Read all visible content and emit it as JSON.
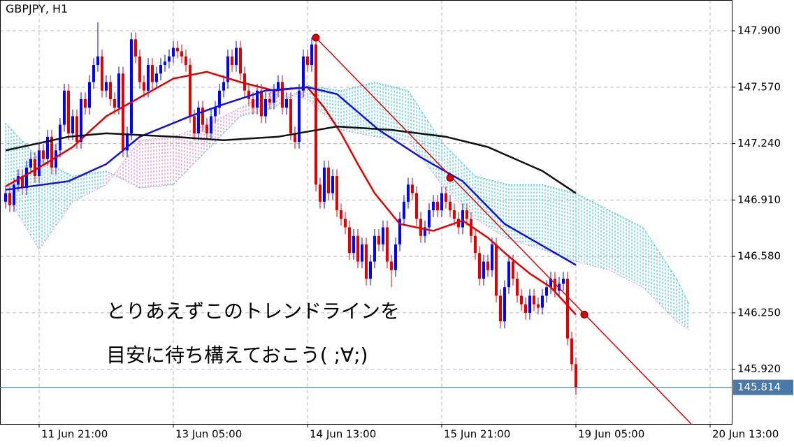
{
  "chart_data": {
    "type": "candlestick",
    "title": "GBPJPY, H1",
    "xlim": [
      -1.33,
      173.17
    ],
    "ylim": [
      145.6,
      148.08
    ],
    "xticks": [
      {
        "value": 8,
        "label": "11 Jun 21:00"
      },
      {
        "value": 40,
        "label": "13 Jun 05:00"
      },
      {
        "value": 72,
        "label": "14 Jun 13:00"
      },
      {
        "value": 104,
        "label": "15 Jun 21:00"
      },
      {
        "value": 136,
        "label": "19 Jun 05:00"
      },
      {
        "value": 168,
        "label": "20 Jun 13:00"
      }
    ],
    "yticks": [
      {
        "value": 147.9,
        "label": "147.900"
      },
      {
        "value": 147.57,
        "label": "147.570"
      },
      {
        "value": 147.24,
        "label": "147.240"
      },
      {
        "value": 146.91,
        "label": "146.910"
      },
      {
        "value": 146.58,
        "label": "146.580"
      },
      {
        "value": 146.25,
        "label": "146.250"
      },
      {
        "value": 145.92,
        "label": "145.920"
      }
    ],
    "grid": true,
    "up_color": "#0000ff",
    "down_color": "#e00000",
    "candles": [
      [
        146.9,
        146.99,
        146.86,
        146.95
      ],
      [
        146.95,
        146.99,
        146.84,
        146.88
      ],
      [
        146.88,
        147.04,
        146.84,
        147.0
      ],
      [
        147.0,
        147.09,
        146.96,
        147.05
      ],
      [
        147.05,
        147.09,
        146.94,
        146.98
      ],
      [
        146.98,
        147.14,
        146.94,
        147.1
      ],
      [
        147.1,
        147.19,
        147.06,
        147.15
      ],
      [
        147.15,
        147.19,
        147.01,
        147.05
      ],
      [
        147.05,
        147.24,
        147.01,
        147.2
      ],
      [
        147.2,
        147.24,
        147.11,
        147.15
      ],
      [
        147.15,
        147.32,
        147.11,
        147.28
      ],
      [
        147.28,
        147.32,
        147.06,
        147.1
      ],
      [
        147.1,
        147.24,
        147.06,
        147.2
      ],
      [
        147.2,
        147.39,
        147.16,
        147.35
      ],
      [
        147.35,
        147.59,
        147.31,
        147.55
      ],
      [
        147.55,
        147.59,
        147.26,
        147.3
      ],
      [
        147.3,
        147.44,
        147.26,
        147.4
      ],
      [
        147.4,
        147.44,
        147.21,
        147.25
      ],
      [
        147.25,
        147.54,
        147.21,
        147.5
      ],
      [
        147.5,
        147.54,
        147.41,
        147.45
      ],
      [
        147.45,
        147.64,
        147.41,
        147.6
      ],
      [
        147.6,
        147.74,
        147.56,
        147.7
      ],
      [
        147.7,
        147.95,
        147.66,
        147.75
      ],
      [
        147.75,
        147.79,
        147.51,
        147.55
      ],
      [
        147.55,
        147.64,
        147.51,
        147.6
      ],
      [
        147.6,
        147.64,
        147.46,
        147.5
      ],
      [
        147.5,
        147.54,
        147.41,
        147.45
      ],
      [
        147.45,
        147.69,
        147.41,
        147.65
      ],
      [
        147.65,
        147.69,
        147.16,
        147.2
      ],
      [
        147.2,
        147.34,
        147.16,
        147.3
      ],
      [
        147.3,
        147.89,
        147.26,
        147.85
      ],
      [
        147.85,
        147.89,
        147.71,
        147.75
      ],
      [
        147.75,
        147.79,
        147.56,
        147.6
      ],
      [
        147.6,
        147.64,
        147.51,
        147.55
      ],
      [
        147.55,
        147.74,
        147.51,
        147.7
      ],
      [
        147.7,
        147.74,
        147.56,
        147.6
      ],
      [
        147.6,
        147.69,
        147.56,
        147.65
      ],
      [
        147.65,
        147.74,
        147.61,
        147.7
      ],
      [
        147.7,
        147.76,
        147.66,
        147.72
      ],
      [
        147.72,
        147.79,
        147.68,
        147.75
      ],
      [
        147.75,
        147.84,
        147.71,
        147.8
      ],
      [
        147.8,
        147.84,
        147.74,
        147.78
      ],
      [
        147.78,
        147.82,
        147.71,
        147.75
      ],
      [
        147.75,
        147.79,
        147.66,
        147.7
      ],
      [
        147.7,
        147.74,
        147.36,
        147.4
      ],
      [
        147.4,
        147.44,
        147.26,
        147.3
      ],
      [
        147.3,
        147.49,
        147.26,
        147.45
      ],
      [
        147.45,
        147.49,
        147.31,
        147.35
      ],
      [
        147.35,
        147.39,
        147.26,
        147.3
      ],
      [
        147.3,
        147.44,
        147.26,
        147.4
      ],
      [
        147.4,
        147.49,
        147.36,
        147.45
      ],
      [
        147.45,
        147.59,
        147.41,
        147.55
      ],
      [
        147.55,
        147.64,
        147.51,
        147.6
      ],
      [
        147.6,
        147.79,
        147.56,
        147.75
      ],
      [
        147.75,
        147.79,
        147.66,
        147.7
      ],
      [
        147.7,
        147.84,
        147.66,
        147.8
      ],
      [
        147.8,
        147.84,
        147.61,
        147.65
      ],
      [
        147.65,
        147.69,
        147.51,
        147.55
      ],
      [
        147.55,
        147.59,
        147.46,
        147.5
      ],
      [
        147.5,
        147.54,
        147.41,
        147.45
      ],
      [
        147.45,
        147.59,
        147.41,
        147.55
      ],
      [
        147.55,
        147.59,
        147.36,
        147.4
      ],
      [
        147.4,
        147.54,
        147.36,
        147.5
      ],
      [
        147.5,
        147.54,
        147.44,
        147.48
      ],
      [
        147.48,
        147.59,
        147.44,
        147.55
      ],
      [
        147.55,
        147.64,
        147.51,
        147.6
      ],
      [
        147.6,
        147.64,
        147.41,
        147.45
      ],
      [
        147.45,
        147.54,
        147.41,
        147.5
      ],
      [
        147.5,
        147.54,
        147.26,
        147.3
      ],
      [
        147.3,
        147.34,
        147.21,
        147.25
      ],
      [
        147.25,
        147.59,
        147.21,
        147.55
      ],
      [
        147.55,
        147.79,
        147.51,
        147.75
      ],
      [
        147.75,
        147.79,
        147.66,
        147.7
      ],
      [
        147.7,
        147.86,
        147.66,
        147.82
      ],
      [
        147.82,
        147.86,
        146.96,
        147.0
      ],
      [
        147.0,
        147.04,
        146.86,
        146.9
      ],
      [
        146.9,
        147.14,
        146.86,
        147.1
      ],
      [
        147.1,
        147.14,
        146.91,
        146.95
      ],
      [
        146.95,
        147.09,
        146.91,
        147.05
      ],
      [
        147.05,
        147.09,
        146.81,
        146.85
      ],
      [
        146.85,
        146.89,
        146.76,
        146.8
      ],
      [
        146.8,
        146.84,
        146.71,
        146.75
      ],
      [
        146.75,
        146.79,
        146.56,
        146.6
      ],
      [
        146.6,
        146.74,
        146.56,
        146.7
      ],
      [
        146.7,
        146.74,
        146.51,
        146.55
      ],
      [
        146.55,
        146.69,
        146.51,
        146.65
      ],
      [
        146.65,
        146.69,
        146.41,
        146.45
      ],
      [
        146.45,
        146.59,
        146.41,
        146.55
      ],
      [
        146.55,
        146.74,
        146.51,
        146.7
      ],
      [
        146.7,
        146.74,
        146.61,
        146.65
      ],
      [
        146.65,
        146.79,
        146.61,
        146.75
      ],
      [
        146.75,
        146.79,
        146.51,
        146.55
      ],
      [
        146.55,
        146.59,
        146.4,
        146.5
      ],
      [
        146.5,
        146.69,
        146.46,
        146.65
      ],
      [
        146.65,
        146.84,
        146.61,
        146.8
      ],
      [
        146.8,
        146.94,
        146.76,
        146.9
      ],
      [
        146.9,
        147.04,
        146.86,
        147.0
      ],
      [
        147.0,
        147.04,
        146.91,
        146.95
      ],
      [
        146.95,
        146.99,
        146.76,
        146.8
      ],
      [
        146.8,
        146.84,
        146.66,
        146.7
      ],
      [
        146.7,
        146.79,
        146.66,
        146.75
      ],
      [
        146.75,
        146.89,
        146.71,
        146.85
      ],
      [
        146.85,
        146.94,
        146.81,
        146.9
      ],
      [
        146.9,
        146.94,
        146.81,
        146.85
      ],
      [
        146.85,
        146.99,
        146.81,
        146.95
      ],
      [
        146.95,
        146.99,
        146.86,
        146.9
      ],
      [
        146.9,
        146.94,
        146.81,
        146.85
      ],
      [
        146.85,
        146.89,
        146.76,
        146.8
      ],
      [
        146.8,
        146.84,
        146.71,
        146.75
      ],
      [
        146.75,
        146.89,
        146.71,
        146.85
      ],
      [
        146.85,
        146.89,
        146.76,
        146.8
      ],
      [
        146.8,
        146.84,
        146.66,
        146.7
      ],
      [
        146.7,
        146.74,
        146.56,
        146.6
      ],
      [
        146.6,
        146.64,
        146.41,
        146.45
      ],
      [
        146.45,
        146.59,
        146.41,
        146.55
      ],
      [
        146.55,
        146.59,
        146.46,
        146.5
      ],
      [
        146.5,
        146.69,
        146.46,
        146.65
      ],
      [
        146.65,
        146.69,
        146.31,
        146.35
      ],
      [
        146.35,
        146.39,
        146.16,
        146.2
      ],
      [
        146.2,
        146.44,
        146.16,
        146.4
      ],
      [
        146.4,
        146.59,
        146.36,
        146.55
      ],
      [
        146.55,
        146.59,
        146.41,
        146.45
      ],
      [
        146.45,
        146.49,
        146.31,
        146.35
      ],
      [
        146.35,
        146.39,
        146.26,
        146.3
      ],
      [
        146.3,
        146.34,
        146.21,
        146.25
      ],
      [
        146.25,
        146.39,
        146.21,
        146.35
      ],
      [
        146.35,
        146.39,
        146.26,
        146.3
      ],
      [
        146.3,
        146.34,
        146.24,
        146.28
      ],
      [
        146.28,
        146.39,
        146.24,
        146.35
      ],
      [
        146.35,
        146.44,
        146.31,
        146.4
      ],
      [
        146.4,
        146.49,
        146.36,
        146.45
      ],
      [
        146.45,
        146.49,
        146.34,
        146.38
      ],
      [
        146.38,
        146.46,
        146.34,
        146.42
      ],
      [
        146.42,
        146.49,
        146.38,
        146.45
      ],
      [
        146.45,
        146.49,
        146.06,
        146.1
      ],
      [
        146.1,
        146.14,
        145.91,
        145.95
      ],
      [
        145.95,
        145.99,
        145.77,
        145.81
      ]
    ],
    "series": [
      {
        "color": "#e00000",
        "x": [
          0,
          8,
          16,
          24,
          32,
          40,
          48,
          56,
          64,
          72,
          76,
          80,
          84,
          88,
          94,
          102,
          109,
          115,
          120,
          125,
          130,
          136
        ],
        "values": [
          146.99,
          147.1,
          147.22,
          147.4,
          147.51,
          147.62,
          147.66,
          147.6,
          147.55,
          147.57,
          147.45,
          147.3,
          147.12,
          146.95,
          146.77,
          146.73,
          146.79,
          146.69,
          146.58,
          146.48,
          146.4,
          146.24
        ]
      },
      {
        "color": "#1010e0",
        "x": [
          0,
          15,
          24,
          32,
          44,
          52,
          62,
          72,
          79,
          89,
          99,
          109,
          119,
          136
        ],
        "values": [
          146.97,
          147.02,
          147.12,
          147.28,
          147.4,
          147.47,
          147.55,
          147.57,
          147.53,
          147.32,
          147.16,
          147.02,
          146.77,
          146.53
        ]
      },
      {
        "color": "#101010",
        "x": [
          0,
          15,
          24,
          40,
          52,
          65,
          79,
          92,
          105,
          115,
          128,
          136
        ],
        "values": [
          147.2,
          147.28,
          147.3,
          147.28,
          147.26,
          147.28,
          147.34,
          147.32,
          147.28,
          147.22,
          147.08,
          146.95
        ]
      }
    ],
    "cloud": {
      "x": [
        0,
        8,
        16,
        24,
        32,
        40,
        48,
        56,
        64,
        72,
        80,
        88,
        96,
        104,
        112,
        120,
        128,
        136,
        144,
        152,
        160,
        163
      ],
      "span_a": [
        147.36,
        147.15,
        147.05,
        147.08,
        146.98,
        147.0,
        147.2,
        147.4,
        147.45,
        147.58,
        147.55,
        147.6,
        147.55,
        147.25,
        147.05,
        147.0,
        147.0,
        146.95,
        146.85,
        146.75,
        146.45,
        146.3
      ],
      "span_b": [
        146.95,
        146.62,
        146.9,
        147.0,
        147.26,
        147.28,
        147.35,
        147.45,
        147.55,
        147.5,
        147.32,
        147.28,
        147.26,
        147.0,
        146.8,
        146.68,
        146.62,
        146.55,
        146.5,
        146.4,
        146.2,
        146.15
      ],
      "up_color": "#20c0d0",
      "down_color": "#e070c0"
    },
    "trendline": {
      "color": "#e00000",
      "x": [
        74,
        163.5
      ],
      "values": [
        147.86,
        145.6
      ]
    },
    "trend_points": {
      "color": "#e00000",
      "x": [
        74,
        106,
        138
      ],
      "values": [
        147.86,
        147.04,
        146.24
      ]
    },
    "current_price": 145.814,
    "annotations": [
      "とりあえずこのトレンドラインを",
      "目安に待ち構えておこう( ;∀;)"
    ]
  }
}
